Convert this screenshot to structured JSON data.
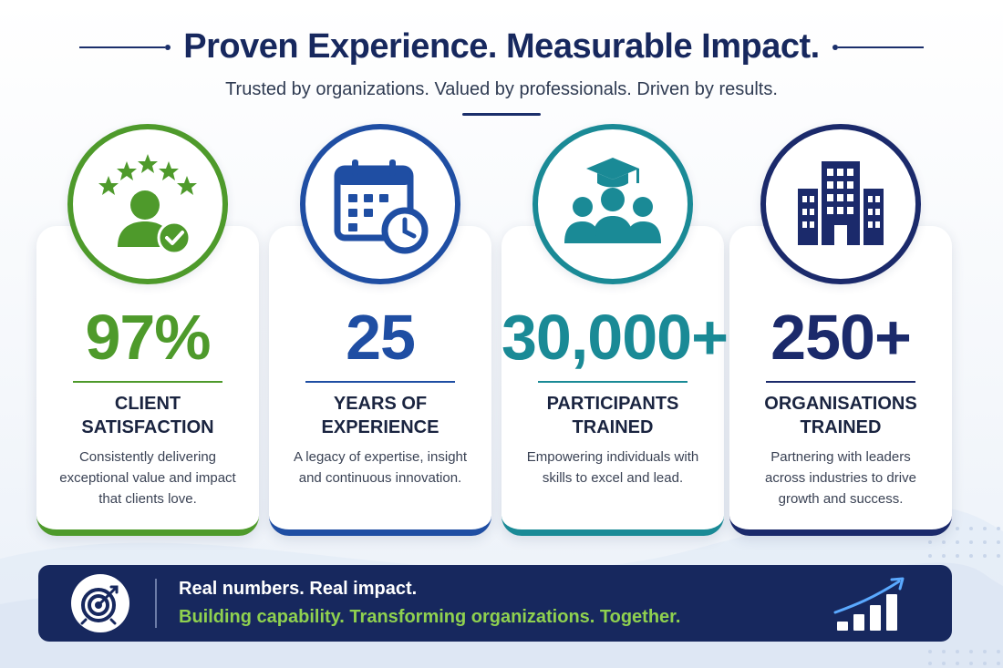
{
  "header": {
    "title": "Proven Experience. Measurable Impact.",
    "subtitle": "Trusted by organizations. Valued by professionals. Driven by results."
  },
  "stats": [
    {
      "value": "97%",
      "label_line1": "CLIENT",
      "label_line2": "SATISFACTION",
      "description": "Consistently delivering exceptional value and impact that clients love.",
      "icon": "client-satisfaction-icon",
      "accent": "#4e9a2b"
    },
    {
      "value": "25",
      "label_line1": "YEARS OF",
      "label_line2": "EXPERIENCE",
      "description": "A legacy of expertise, insight and continuous innovation.",
      "icon": "calendar-clock-icon",
      "accent": "#1f4ea3"
    },
    {
      "value": "30,000+",
      "label_line1": "PARTICIPANTS",
      "label_line2": "TRAINED",
      "description": "Empowering individuals with skills to excel and lead.",
      "icon": "graduation-group-icon",
      "accent": "#1a8a96"
    },
    {
      "value": "250+",
      "label_line1": "ORGANISATIONS",
      "label_line2": "TRAINED",
      "description": "Partnering with leaders across industries to drive growth and success.",
      "icon": "building-icon",
      "accent": "#1b2a6b"
    }
  ],
  "banner": {
    "line1": "Real numbers. Real impact.",
    "line2": "Building capability. Transforming organizations. Together.",
    "left_icon": "target-icon",
    "right_icon": "growth-chart-icon"
  }
}
